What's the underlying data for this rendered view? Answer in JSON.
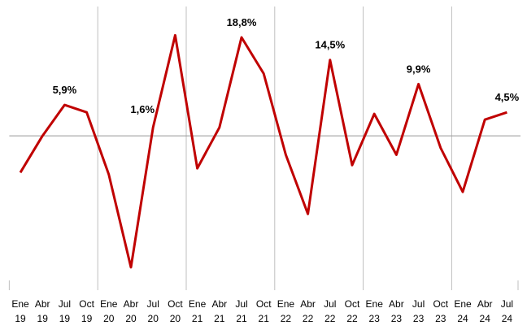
{
  "chart_data": {
    "type": "line",
    "categories": [
      [
        "Ene",
        "19"
      ],
      [
        "Abr",
        "19"
      ],
      [
        "Jul",
        "19"
      ],
      [
        "Oct",
        "19"
      ],
      [
        "Ene",
        "20"
      ],
      [
        "Abr",
        "20"
      ],
      [
        "Jul",
        "20"
      ],
      [
        "Oct",
        "20"
      ],
      [
        "Ene",
        "21"
      ],
      [
        "Abr",
        "21"
      ],
      [
        "Jul",
        "21"
      ],
      [
        "Oct",
        "21"
      ],
      [
        "Ene",
        "22"
      ],
      [
        "Abr",
        "22"
      ],
      [
        "Jul",
        "22"
      ],
      [
        "Oct",
        "22"
      ],
      [
        "Ene",
        "23"
      ],
      [
        "Abr",
        "23"
      ],
      [
        "Jul",
        "23"
      ],
      [
        "Oct",
        "23"
      ],
      [
        "Ene",
        "24"
      ],
      [
        "Abr",
        "24"
      ],
      [
        "Jul",
        "24"
      ]
    ],
    "values": [
      -7.0,
      0,
      5.9,
      4.5,
      -7.4,
      -25.1,
      1.6,
      19.2,
      -6.2,
      1.6,
      18.8,
      11.9,
      -3.6,
      -14.9,
      14.5,
      -5.6,
      4.2,
      -3.6,
      9.9,
      -2.3,
      -10.7,
      3.1,
      4.5
    ],
    "value_labels": [
      null,
      null,
      "5,9%",
      null,
      null,
      null,
      "1,6%",
      null,
      null,
      null,
      "18,8%",
      null,
      null,
      null,
      "14,5%",
      null,
      null,
      null,
      "9,9%",
      null,
      null,
      null,
      "4,5%"
    ],
    "color": "#c00000",
    "ylim": [
      -27.6,
      24.7
    ]
  }
}
